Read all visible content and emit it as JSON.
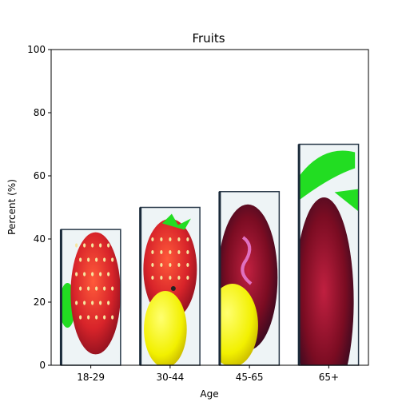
{
  "chart_data": {
    "type": "bar",
    "title": "Fruits",
    "xlabel": "Age",
    "ylabel": "Percent (%)",
    "categories": [
      "18-29",
      "30-44",
      "45-65",
      "65+"
    ],
    "values": [
      43,
      50,
      55,
      70
    ],
    "ylim": [
      0,
      100
    ],
    "yticks": [
      0,
      20,
      40,
      60,
      80,
      100
    ],
    "grid": false,
    "legend": "none",
    "bar_fill": "pictorial fruit images (strawberry, lemon)",
    "colors": {
      "strawberry": "#d8242a",
      "strawberry_dark": "#8a0f1e",
      "leaf": "#22dd22",
      "lemon": "#f2f000",
      "bar_edge": "#2a3a4a"
    }
  }
}
